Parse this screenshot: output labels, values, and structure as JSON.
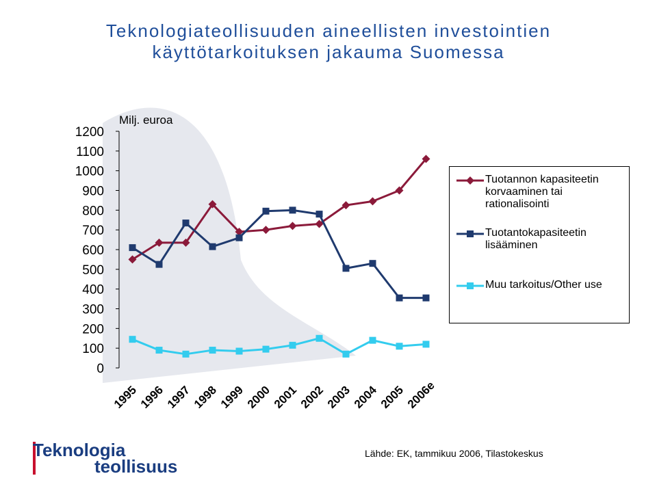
{
  "title_line1": "Teknologiateollisuuden aineellisten investointien",
  "title_line2": "käyttötarkoituksen jakauma Suomessa",
  "source_note": "Lähde: EK, tammikuu 2006, Tilastokeskus",
  "logo": {
    "line1": "Teknologia",
    "line2": "teollisuus"
  },
  "colors": {
    "title": "#1f4e9a",
    "series1": "#8b1a3a",
    "series2": "#1f3a6e",
    "series3": "#33ccee"
  },
  "chart_data": {
    "type": "line",
    "unit_label": "Milj. euroa",
    "categories": [
      "1995",
      "1996",
      "1997",
      "1998",
      "1999",
      "2000",
      "2001",
      "2002",
      "2003",
      "2004",
      "2005",
      "2006e"
    ],
    "y_ticks": [
      "0",
      "100",
      "200",
      "300",
      "400",
      "500",
      "600",
      "700",
      "800",
      "900",
      "1000",
      "1100",
      "1200"
    ],
    "ylim": [
      0,
      1200
    ],
    "legend_position": "right",
    "series": [
      {
        "name": "Tuotannon kapasiteetin korvaaminen tai rationalisointi",
        "marker": "diamond",
        "values": [
          550,
          635,
          635,
          830,
          690,
          700,
          720,
          730,
          825,
          845,
          900,
          1060
        ]
      },
      {
        "name": "Tuotantokapasiteetin lisääminen",
        "marker": "square",
        "values": [
          610,
          525,
          735,
          615,
          660,
          795,
          800,
          780,
          505,
          530,
          355,
          355
        ]
      },
      {
        "name": "Muu tarkoitus/Other use",
        "marker": "square",
        "values": [
          145,
          90,
          70,
          90,
          85,
          95,
          115,
          150,
          70,
          140,
          110,
          120
        ]
      }
    ]
  }
}
